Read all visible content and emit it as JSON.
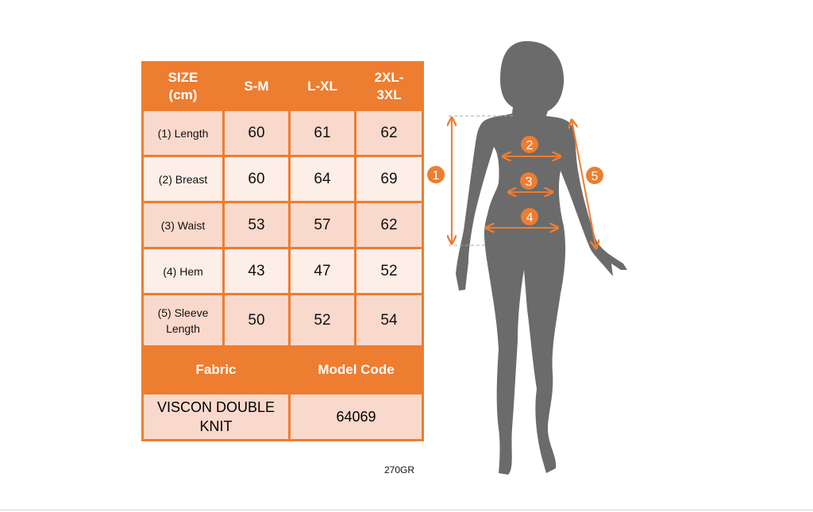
{
  "size_chart": {
    "header": [
      "SIZE (cm)",
      "S-M",
      "L-XL",
      "2XL-3XL"
    ],
    "header_lines": [
      [
        "SIZE",
        "(cm)"
      ],
      [
        "S-M"
      ],
      [
        "L-XL"
      ],
      [
        "2XL-",
        "3XL"
      ]
    ],
    "rows": [
      {
        "label": "(1) Length",
        "values": [
          "60",
          "61",
          "62"
        ]
      },
      {
        "label": "(2) Breast",
        "values": [
          "60",
          "64",
          "69"
        ]
      },
      {
        "label": "(3) Waist",
        "values": [
          "53",
          "57",
          "62"
        ]
      },
      {
        "label": "(4) Hem",
        "values": [
          "43",
          "47",
          "52"
        ]
      },
      {
        "label_lines": [
          "(5) Sleeve",
          "Length"
        ],
        "values": [
          "50",
          "52",
          "54"
        ]
      }
    ],
    "fabric_header": "Fabric",
    "model_code_header": "Model Code",
    "fabric_lines": [
      "VISCON DOUBLE",
      "KNIT"
    ],
    "model_code": "64069",
    "weight": "270GR"
  },
  "figure": {
    "markers": [
      "1",
      "2",
      "3",
      "4",
      "5"
    ],
    "accent_color": "#ed7d31",
    "silhouette_color": "#6b6b6b"
  }
}
